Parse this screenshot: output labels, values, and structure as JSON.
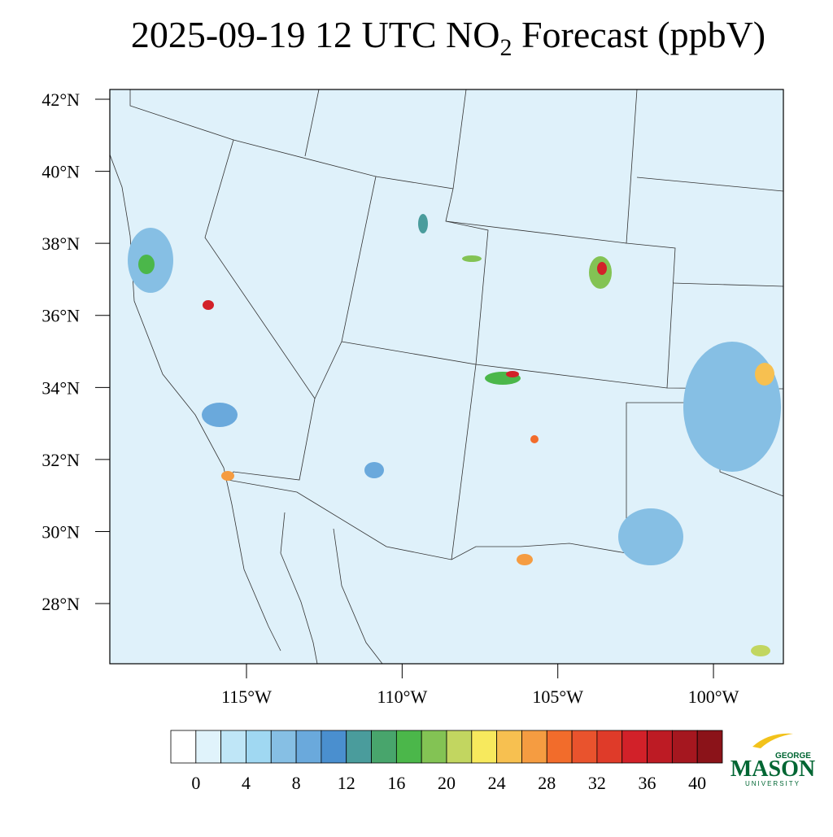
{
  "header": {
    "title_main": "2025-09-19 12 UTC NO",
    "title_sub": "2",
    "title_rest": " Forecast (ppbV)"
  },
  "map": {
    "lat_ticks": [
      {
        "value": 42,
        "label": "42°N"
      },
      {
        "value": 40,
        "label": "40°N"
      },
      {
        "value": 38,
        "label": "38°N"
      },
      {
        "value": 36,
        "label": "36°N"
      },
      {
        "value": 34,
        "label": "34°N"
      },
      {
        "value": 32,
        "label": "32°N"
      },
      {
        "value": 30,
        "label": "30°N"
      },
      {
        "value": 28,
        "label": "28°N"
      }
    ],
    "lon_ticks": [
      {
        "value": -115,
        "label": "115°W"
      },
      {
        "value": -110,
        "label": "110°W"
      },
      {
        "value": -105,
        "label": "105°W"
      },
      {
        "value": -100,
        "label": "100°W"
      }
    ]
  },
  "colorbar": {
    "levels": [
      0,
      2,
      4,
      6,
      8,
      10,
      12,
      14,
      16,
      18,
      20,
      22,
      24,
      26,
      28,
      30,
      32,
      34,
      36,
      38,
      40
    ],
    "colors": [
      "#ffffff",
      "#e0f3fb",
      "#bfe6f7",
      "#a0d8f2",
      "#86bfe4",
      "#6aa9dc",
      "#4a8fcf",
      "#4a9c9c",
      "#48a56c",
      "#4bb74a",
      "#83c354",
      "#c2d660",
      "#f7e95d",
      "#f7c050",
      "#f59c41",
      "#f26c2b",
      "#e9532d",
      "#df3b29",
      "#d22129",
      "#bd1b24",
      "#a5171f",
      "#8b1319"
    ],
    "ticks": [
      0,
      4,
      8,
      12,
      16,
      20,
      24,
      28,
      32,
      36,
      40
    ]
  },
  "logo": {
    "top": "GEORGE",
    "main": "MASON",
    "bottom": "UNIVERSITY"
  }
}
